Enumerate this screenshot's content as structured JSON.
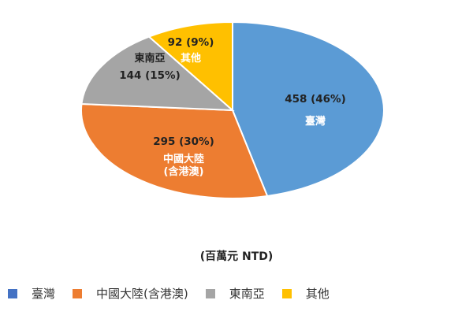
{
  "chart_data": {
    "type": "pie",
    "title": "",
    "subtitle": "(百萬元 NTD)",
    "legend_position": "bottom",
    "slices": [
      {
        "label": "臺灣",
        "value": 458,
        "percent": 46,
        "value_text": "458 (46%)",
        "label_lines": [
          "臺灣"
        ],
        "color": "#5B9BD5"
      },
      {
        "label": "中國大陸(含港澳)",
        "value": 295,
        "percent": 30,
        "value_text": "295 (30%)",
        "label_lines": [
          "中國大陸",
          "(含港澳)"
        ],
        "color": "#ED7D31"
      },
      {
        "label": "東南亞",
        "value": 144,
        "percent": 15,
        "value_text": "144 (15%)",
        "label_lines": [
          "東南亞"
        ],
        "color": "#A5A5A5"
      },
      {
        "label": "其他",
        "value": 92,
        "percent": 9,
        "value_text": "92 (9%)",
        "label_lines": [
          "其他"
        ],
        "color": "#FFC000"
      }
    ],
    "legend": [
      {
        "label": "臺灣",
        "color": "#4472C4"
      },
      {
        "label": "中國大陸(含港澳)",
        "color": "#ED7D31"
      },
      {
        "label": "東南亞",
        "color": "#A5A5A5"
      },
      {
        "label": "其他",
        "color": "#FFC000"
      }
    ]
  }
}
